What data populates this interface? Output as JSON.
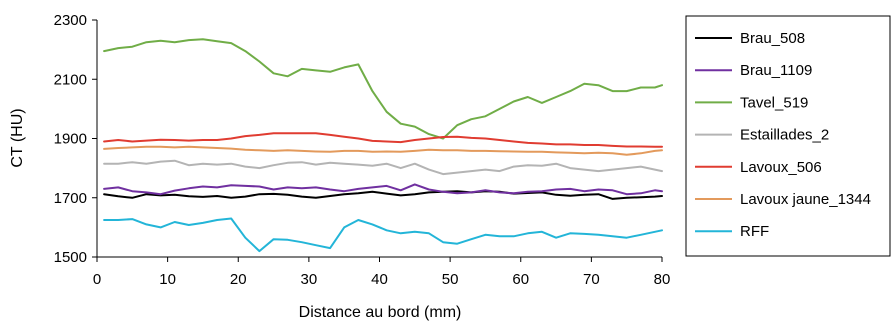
{
  "chart_data": {
    "type": "line",
    "xlabel": "Distance au bord (mm)",
    "ylabel": "CT (HU)",
    "xlim": [
      0,
      80
    ],
    "ylim": [
      1500,
      2300
    ],
    "xticks": [
      0,
      10,
      20,
      30,
      40,
      50,
      60,
      70,
      80
    ],
    "yticks": [
      1500,
      1700,
      1900,
      2100,
      2300
    ],
    "grid": false,
    "legend_position": "right",
    "x": [
      1,
      3,
      5,
      7,
      9,
      11,
      13,
      15,
      17,
      19,
      21,
      23,
      25,
      27,
      29,
      31,
      33,
      35,
      37,
      39,
      41,
      43,
      45,
      47,
      49,
      51,
      53,
      55,
      57,
      59,
      61,
      63,
      65,
      67,
      69,
      71,
      73,
      75,
      77,
      79,
      80
    ],
    "series": [
      {
        "name": "Brau_508",
        "color": "#000000",
        "values": [
          1712,
          1705,
          1700,
          1712,
          1708,
          1710,
          1705,
          1703,
          1706,
          1700,
          1704,
          1712,
          1713,
          1710,
          1704,
          1700,
          1706,
          1712,
          1715,
          1720,
          1714,
          1708,
          1712,
          1718,
          1720,
          1722,
          1718,
          1722,
          1720,
          1714,
          1716,
          1718,
          1710,
          1707,
          1710,
          1712,
          1696,
          1700,
          1702,
          1704,
          1706
        ]
      },
      {
        "name": "Brau_1109",
        "color": "#7030a0",
        "values": [
          1730,
          1735,
          1722,
          1718,
          1712,
          1724,
          1732,
          1738,
          1735,
          1742,
          1740,
          1738,
          1728,
          1735,
          1732,
          1735,
          1728,
          1722,
          1730,
          1735,
          1740,
          1725,
          1745,
          1728,
          1720,
          1715,
          1718,
          1725,
          1718,
          1715,
          1720,
          1722,
          1728,
          1730,
          1722,
          1728,
          1725,
          1712,
          1715,
          1725,
          1722
        ]
      },
      {
        "name": "Tavel_519",
        "color": "#70ad47",
        "values": [
          2195,
          2205,
          2210,
          2225,
          2230,
          2225,
          2232,
          2235,
          2228,
          2222,
          2195,
          2160,
          2120,
          2110,
          2135,
          2130,
          2125,
          2140,
          2150,
          2060,
          1990,
          1950,
          1940,
          1915,
          1900,
          1945,
          1965,
          1975,
          2000,
          2025,
          2040,
          2020,
          2040,
          2060,
          2085,
          2080,
          2060,
          2060,
          2072,
          2072,
          2080
        ]
      },
      {
        "name": "Estaillades_2",
        "color": "#b4b4b4",
        "values": [
          1815,
          1815,
          1820,
          1815,
          1822,
          1825,
          1810,
          1815,
          1812,
          1815,
          1805,
          1800,
          1810,
          1818,
          1820,
          1812,
          1818,
          1815,
          1812,
          1808,
          1815,
          1800,
          1815,
          1795,
          1780,
          1785,
          1790,
          1795,
          1790,
          1805,
          1810,
          1808,
          1815,
          1800,
          1795,
          1790,
          1795,
          1800,
          1805,
          1795,
          1790
        ]
      },
      {
        "name": "Lavoux_506",
        "color": "#e03c31",
        "values": [
          1890,
          1895,
          1890,
          1893,
          1896,
          1895,
          1893,
          1895,
          1895,
          1900,
          1908,
          1912,
          1918,
          1918,
          1918,
          1918,
          1912,
          1906,
          1900,
          1892,
          1890,
          1888,
          1895,
          1900,
          1905,
          1906,
          1902,
          1900,
          1895,
          1890,
          1885,
          1883,
          1880,
          1880,
          1878,
          1878,
          1875,
          1873,
          1873,
          1872,
          1872
        ]
      },
      {
        "name": "Lavoux jaune_1344",
        "color": "#e39a5c",
        "values": [
          1865,
          1868,
          1870,
          1872,
          1872,
          1870,
          1872,
          1870,
          1868,
          1866,
          1862,
          1860,
          1858,
          1860,
          1858,
          1856,
          1855,
          1858,
          1858,
          1855,
          1856,
          1855,
          1858,
          1862,
          1860,
          1860,
          1858,
          1858,
          1857,
          1856,
          1855,
          1855,
          1853,
          1852,
          1850,
          1852,
          1850,
          1845,
          1850,
          1858,
          1860
        ]
      },
      {
        "name": "RFF",
        "color": "#23b5d8",
        "values": [
          1625,
          1625,
          1628,
          1610,
          1600,
          1618,
          1608,
          1615,
          1625,
          1630,
          1565,
          1520,
          1560,
          1558,
          1550,
          1540,
          1530,
          1600,
          1625,
          1610,
          1590,
          1580,
          1585,
          1580,
          1550,
          1545,
          1560,
          1575,
          1570,
          1570,
          1580,
          1585,
          1565,
          1580,
          1578,
          1575,
          1570,
          1565,
          1575,
          1585,
          1590
        ]
      }
    ]
  }
}
